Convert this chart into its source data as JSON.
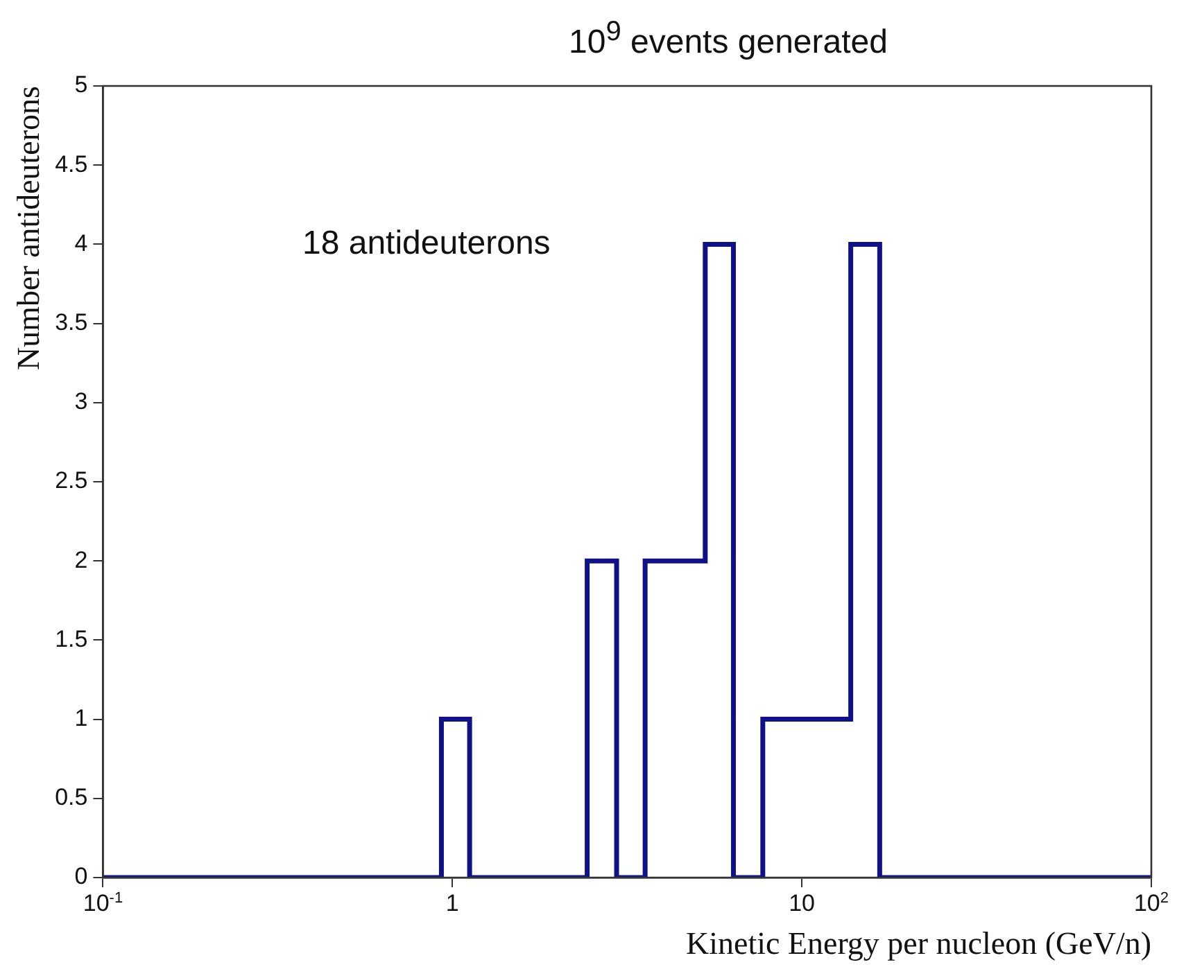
{
  "chart_data": {
    "type": "histogram",
    "title": "10$^{9}$ events generated",
    "xlabel": "Kinetic Energy per nucleon (GeV/n)",
    "ylabel": "Number antideuterons",
    "annotations": [
      "18 antideuterons"
    ],
    "bins": [
      0.1,
      0.93,
      1.12,
      2.43,
      2.95,
      3.56,
      5.29,
      6.37,
      7.73,
      13.8,
      16.7,
      100
    ],
    "values": [
      0,
      1,
      0,
      2,
      0,
      2,
      4,
      0,
      1,
      4,
      0
    ],
    "color": "#10108a",
    "log": "x",
    "xlim": [
      0.1,
      100
    ],
    "xticks": [
      {
        "value": 0.1,
        "label": "10$^{-1}$"
      },
      1,
      10,
      {
        "value": 100,
        "label": "10$^{2}$"
      }
    ],
    "ylim": [
      0,
      5
    ],
    "yticks": [
      0,
      0.5,
      1,
      1.5,
      2,
      2.5,
      3,
      3.5,
      4,
      4.5,
      5
    ],
    "grid": false,
    "legend": false
  }
}
